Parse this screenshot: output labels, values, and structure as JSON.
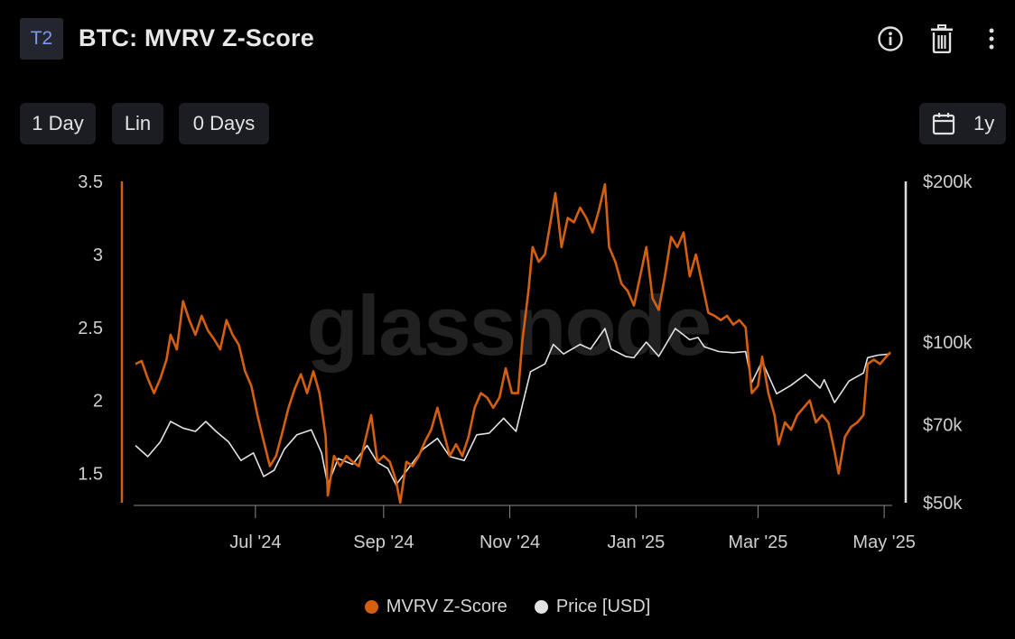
{
  "header": {
    "tier_badge": "T2",
    "title": "BTC: MVRV Z-Score",
    "icons": [
      "info-icon",
      "trash-icon",
      "more-vertical-icon"
    ]
  },
  "controls": {
    "resolution": "1 Day",
    "scale": "Lin",
    "moving_average": "0 Days",
    "range": "1y",
    "range_icon": "calendar-icon"
  },
  "watermark": "glassnode",
  "colors": {
    "background": "#000000",
    "mvrv": "#d4600f",
    "price": "#e3e3e3",
    "axis_text": "#cfcfcf"
  },
  "legend": {
    "mvrv_label": "MVRV Z-Score",
    "price_label": "Price [USD]"
  },
  "chart_data": {
    "type": "line",
    "title": "BTC: MVRV Z-Score",
    "x_tick_labels": [
      "Jul '24",
      "Sep '24",
      "Nov '24",
      "Jan '25",
      "Mar '25",
      "May '25"
    ],
    "x_tick_dates": [
      "2024-07-01",
      "2024-09-01",
      "2024-11-01",
      "2025-01-01",
      "2025-03-01",
      "2025-05-01"
    ],
    "x_range": [
      "2024-05-04",
      "2025-05-04"
    ],
    "left_axis": {
      "ticks": [
        1.5,
        2,
        2.5,
        3,
        3.5
      ],
      "tick_labels": [
        "1.5",
        "2",
        "2.5",
        "3",
        "3.5"
      ],
      "range": [
        1.3,
        3.5
      ]
    },
    "right_axis": {
      "scale": "log",
      "ticks": [
        50000,
        70000,
        100000,
        200000
      ],
      "tick_labels": [
        "$50k",
        "$70k",
        "$100k",
        "$200k"
      ],
      "range": [
        50000,
        200000
      ]
    },
    "grid": false,
    "legend_position": "bottom-center",
    "series": [
      {
        "name": "MVRV Z-Score",
        "axis": "left",
        "points": [
          [
            "2024-05-04",
            2.25
          ],
          [
            "2024-05-07",
            2.27
          ],
          [
            "2024-05-10",
            2.15
          ],
          [
            "2024-05-13",
            2.05
          ],
          [
            "2024-05-16",
            2.15
          ],
          [
            "2024-05-19",
            2.28
          ],
          [
            "2024-05-21",
            2.45
          ],
          [
            "2024-05-24",
            2.35
          ],
          [
            "2024-05-27",
            2.68
          ],
          [
            "2024-05-30",
            2.55
          ],
          [
            "2024-06-02",
            2.45
          ],
          [
            "2024-06-05",
            2.58
          ],
          [
            "2024-06-08",
            2.48
          ],
          [
            "2024-06-11",
            2.42
          ],
          [
            "2024-06-14",
            2.35
          ],
          [
            "2024-06-17",
            2.55
          ],
          [
            "2024-06-20",
            2.45
          ],
          [
            "2024-06-23",
            2.38
          ],
          [
            "2024-06-26",
            2.2
          ],
          [
            "2024-06-29",
            2.1
          ],
          [
            "2024-07-02",
            1.9
          ],
          [
            "2024-07-05",
            1.72
          ],
          [
            "2024-07-08",
            1.55
          ],
          [
            "2024-07-11",
            1.62
          ],
          [
            "2024-07-14",
            1.78
          ],
          [
            "2024-07-17",
            1.95
          ],
          [
            "2024-07-20",
            2.08
          ],
          [
            "2024-07-23",
            2.18
          ],
          [
            "2024-07-26",
            2.05
          ],
          [
            "2024-07-29",
            2.2
          ],
          [
            "2024-08-01",
            2.05
          ],
          [
            "2024-08-04",
            1.75
          ],
          [
            "2024-08-05",
            1.35
          ],
          [
            "2024-08-08",
            1.62
          ],
          [
            "2024-08-11",
            1.55
          ],
          [
            "2024-08-14",
            1.62
          ],
          [
            "2024-08-17",
            1.58
          ],
          [
            "2024-08-20",
            1.55
          ],
          [
            "2024-08-23",
            1.72
          ],
          [
            "2024-08-26",
            1.9
          ],
          [
            "2024-08-29",
            1.58
          ],
          [
            "2024-09-01",
            1.62
          ],
          [
            "2024-09-04",
            1.58
          ],
          [
            "2024-09-07",
            1.45
          ],
          [
            "2024-09-09",
            1.3
          ],
          [
            "2024-09-12",
            1.58
          ],
          [
            "2024-09-15",
            1.55
          ],
          [
            "2024-09-18",
            1.62
          ],
          [
            "2024-09-21",
            1.72
          ],
          [
            "2024-09-24",
            1.8
          ],
          [
            "2024-09-27",
            1.95
          ],
          [
            "2024-09-30",
            1.78
          ],
          [
            "2024-10-03",
            1.62
          ],
          [
            "2024-10-06",
            1.7
          ],
          [
            "2024-10-09",
            1.62
          ],
          [
            "2024-10-12",
            1.75
          ],
          [
            "2024-10-15",
            1.95
          ],
          [
            "2024-10-18",
            2.05
          ],
          [
            "2024-10-21",
            2.02
          ],
          [
            "2024-10-24",
            1.95
          ],
          [
            "2024-10-27",
            2.02
          ],
          [
            "2024-10-30",
            2.22
          ],
          [
            "2024-11-02",
            2.05
          ],
          [
            "2024-11-05",
            2.05
          ],
          [
            "2024-11-07",
            2.4
          ],
          [
            "2024-11-10",
            2.75
          ],
          [
            "2024-11-12",
            3.05
          ],
          [
            "2024-11-15",
            2.95
          ],
          [
            "2024-11-18",
            3.0
          ],
          [
            "2024-11-21",
            3.25
          ],
          [
            "2024-11-23",
            3.42
          ],
          [
            "2024-11-26",
            3.05
          ],
          [
            "2024-11-29",
            3.25
          ],
          [
            "2024-12-02",
            3.22
          ],
          [
            "2024-12-05",
            3.32
          ],
          [
            "2024-12-08",
            3.25
          ],
          [
            "2024-12-11",
            3.15
          ],
          [
            "2024-12-14",
            3.3
          ],
          [
            "2024-12-17",
            3.48
          ],
          [
            "2024-12-19",
            3.05
          ],
          [
            "2024-12-22",
            2.95
          ],
          [
            "2024-12-25",
            2.8
          ],
          [
            "2024-12-28",
            2.75
          ],
          [
            "2024-12-31",
            2.65
          ],
          [
            "2025-01-03",
            2.85
          ],
          [
            "2025-01-06",
            3.05
          ],
          [
            "2025-01-09",
            2.7
          ],
          [
            "2025-01-12",
            2.62
          ],
          [
            "2025-01-15",
            2.85
          ],
          [
            "2025-01-18",
            3.12
          ],
          [
            "2025-01-21",
            3.05
          ],
          [
            "2025-01-24",
            3.15
          ],
          [
            "2025-01-27",
            2.85
          ],
          [
            "2025-01-30",
            3.0
          ],
          [
            "2025-02-02",
            2.8
          ],
          [
            "2025-02-05",
            2.6
          ],
          [
            "2025-02-08",
            2.58
          ],
          [
            "2025-02-11",
            2.55
          ],
          [
            "2025-02-14",
            2.58
          ],
          [
            "2025-02-17",
            2.52
          ],
          [
            "2025-02-20",
            2.55
          ],
          [
            "2025-02-23",
            2.5
          ],
          [
            "2025-02-26",
            2.05
          ],
          [
            "2025-03-01",
            2.1
          ],
          [
            "2025-03-03",
            2.3
          ],
          [
            "2025-03-06",
            2.05
          ],
          [
            "2025-03-09",
            1.9
          ],
          [
            "2025-03-11",
            1.7
          ],
          [
            "2025-03-14",
            1.85
          ],
          [
            "2025-03-17",
            1.8
          ],
          [
            "2025-03-20",
            1.9
          ],
          [
            "2025-03-23",
            1.95
          ],
          [
            "2025-03-26",
            2.0
          ],
          [
            "2025-03-29",
            1.85
          ],
          [
            "2025-04-01",
            1.9
          ],
          [
            "2025-04-04",
            1.85
          ],
          [
            "2025-04-07",
            1.65
          ],
          [
            "2025-04-09",
            1.5
          ],
          [
            "2025-04-12",
            1.75
          ],
          [
            "2025-04-15",
            1.82
          ],
          [
            "2025-04-18",
            1.85
          ],
          [
            "2025-04-21",
            1.9
          ],
          [
            "2025-04-23",
            2.25
          ],
          [
            "2025-04-26",
            2.28
          ],
          [
            "2025-04-29",
            2.25
          ],
          [
            "2025-05-02",
            2.3
          ],
          [
            "2025-05-04",
            2.33
          ]
        ]
      },
      {
        "name": "Price [USD]",
        "axis": "right",
        "points": [
          [
            "2024-05-04",
            64000
          ],
          [
            "2024-05-10",
            61000
          ],
          [
            "2024-05-16",
            65000
          ],
          [
            "2024-05-21",
            71000
          ],
          [
            "2024-05-27",
            69000
          ],
          [
            "2024-06-02",
            68000
          ],
          [
            "2024-06-07",
            71000
          ],
          [
            "2024-06-12",
            68000
          ],
          [
            "2024-06-18",
            65000
          ],
          [
            "2024-06-24",
            60000
          ],
          [
            "2024-06-30",
            62000
          ],
          [
            "2024-07-05",
            56000
          ],
          [
            "2024-07-10",
            57500
          ],
          [
            "2024-07-15",
            63000
          ],
          [
            "2024-07-21",
            67000
          ],
          [
            "2024-07-28",
            68500
          ],
          [
            "2024-08-02",
            62000
          ],
          [
            "2024-08-05",
            54000
          ],
          [
            "2024-08-10",
            60500
          ],
          [
            "2024-08-17",
            59000
          ],
          [
            "2024-08-24",
            64000
          ],
          [
            "2024-08-29",
            59500
          ],
          [
            "2024-09-03",
            58000
          ],
          [
            "2024-09-07",
            54000
          ],
          [
            "2024-09-13",
            58000
          ],
          [
            "2024-09-20",
            63000
          ],
          [
            "2024-09-27",
            66000
          ],
          [
            "2024-10-03",
            61000
          ],
          [
            "2024-10-10",
            60000
          ],
          [
            "2024-10-16",
            67000
          ],
          [
            "2024-10-22",
            67500
          ],
          [
            "2024-10-29",
            72000
          ],
          [
            "2024-11-04",
            68000
          ],
          [
            "2024-11-07",
            76000
          ],
          [
            "2024-11-11",
            88000
          ],
          [
            "2024-11-18",
            91000
          ],
          [
            "2024-11-22",
            99000
          ],
          [
            "2024-11-27",
            95000
          ],
          [
            "2024-12-05",
            99000
          ],
          [
            "2024-12-10",
            97000
          ],
          [
            "2024-12-17",
            106000
          ],
          [
            "2024-12-20",
            97000
          ],
          [
            "2024-12-27",
            94000
          ],
          [
            "2024-12-31",
            93500
          ],
          [
            "2025-01-06",
            100000
          ],
          [
            "2025-01-12",
            94000
          ],
          [
            "2025-01-20",
            106000
          ],
          [
            "2025-01-27",
            101000
          ],
          [
            "2025-01-31",
            102000
          ],
          [
            "2025-02-03",
            98000
          ],
          [
            "2025-02-10",
            96000
          ],
          [
            "2025-02-17",
            95500
          ],
          [
            "2025-02-23",
            96000
          ],
          [
            "2025-02-26",
            84000
          ],
          [
            "2025-03-03",
            92000
          ],
          [
            "2025-03-10",
            80000
          ],
          [
            "2025-03-17",
            83000
          ],
          [
            "2025-03-24",
            87000
          ],
          [
            "2025-03-31",
            82000
          ],
          [
            "2025-04-02",
            85000
          ],
          [
            "2025-04-07",
            77000
          ],
          [
            "2025-04-14",
            84500
          ],
          [
            "2025-04-21",
            87500
          ],
          [
            "2025-04-23",
            93500
          ],
          [
            "2025-04-28",
            94500
          ],
          [
            "2025-05-04",
            95000
          ]
        ]
      }
    ]
  }
}
